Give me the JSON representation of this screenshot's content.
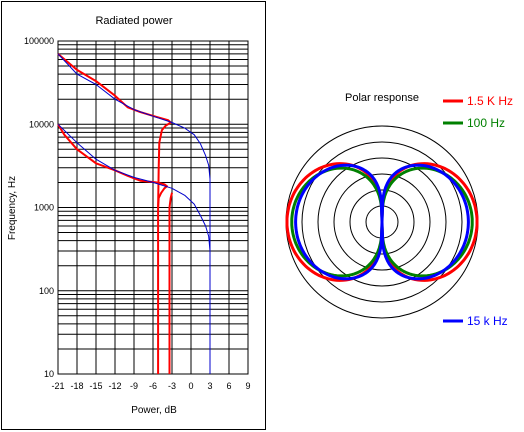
{
  "chart_data": [
    {
      "type": "line",
      "title": "Radiated power",
      "xlabel": "Power, dB",
      "ylabel": "Frequency, Hz",
      "xlim": [
        -21,
        9
      ],
      "ylim": [
        10,
        100000
      ],
      "y_scale": "log",
      "grid": true,
      "x_ticks": [
        "-21",
        "-18",
        "-15",
        "-12",
        "-9",
        "-6",
        "-3",
        "0",
        "3",
        "6",
        "9"
      ],
      "y_ticks": [
        "10",
        "100",
        "1000",
        "10000",
        "100000"
      ],
      "series": [
        {
          "color": "#ff0000",
          "points": [
            [
              -5.2,
              10
            ],
            [
              -5.2,
              1000
            ],
            [
              -5.1,
              1300
            ],
            [
              -4.7,
              1500
            ],
            [
              -4.2,
              1700
            ],
            [
              -3.8,
              1800
            ],
            [
              -4.2,
              1900
            ],
            [
              -5.5,
              2000
            ],
            [
              -8,
              2100
            ],
            [
              -10,
              2400
            ],
            [
              -12,
              2800
            ],
            [
              -15,
              3400
            ],
            [
              -18,
              5000
            ],
            [
              -20,
              7500
            ],
            [
              -21,
              10000
            ]
          ]
        },
        {
          "color": "#ff0000",
          "points": [
            [
              -3.4,
              10
            ],
            [
              -3.4,
              1000
            ],
            [
              -3.2,
              1300
            ],
            [
              -3.0,
              1500
            ]
          ]
        },
        {
          "color": "#ff0000",
          "points": [
            [
              -5.2,
              1000
            ],
            [
              -5.1,
              3000
            ],
            [
              -5.0,
              6000
            ],
            [
              -4.6,
              8500
            ],
            [
              -4.0,
              9600
            ],
            [
              -3.2,
              10500
            ],
            [
              -3.6,
              11200
            ],
            [
              -5.5,
              12300
            ],
            [
              -8,
              14000
            ],
            [
              -10,
              16000
            ],
            [
              -12,
              22000
            ],
            [
              -15,
              33000
            ],
            [
              -18,
              45000
            ],
            [
              -21,
              70000
            ]
          ]
        },
        {
          "color": "#0000cc",
          "points": [
            [
              -21,
              10000
            ],
            [
              -18,
              6000
            ],
            [
              -15,
              3800
            ],
            [
              -12,
              2800
            ],
            [
              -9,
              2300
            ],
            [
              -6,
              2000
            ],
            [
              -3,
              1700
            ],
            [
              -1,
              1400
            ],
            [
              0.5,
              1100
            ],
            [
              1.5,
              800
            ],
            [
              2.3,
              600
            ],
            [
              2.8,
              450
            ],
            [
              3,
              300
            ]
          ]
        },
        {
          "color": "#0000cc",
          "points": [
            [
              -21,
              70000
            ],
            [
              -18,
              40000
            ],
            [
              -15,
              30000
            ],
            [
              -12,
              20000
            ],
            [
              -9,
              15000
            ],
            [
              -6,
              12500
            ],
            [
              -3,
              10500
            ],
            [
              -1,
              9000
            ],
            [
              0.5,
              7500
            ],
            [
              1.5,
              5800
            ],
            [
              2.3,
              4200
            ],
            [
              2.8,
              3200
            ],
            [
              3,
              2200
            ],
            [
              3,
              10
            ]
          ]
        }
      ]
    },
    {
      "type": "polar",
      "title": "Polar response",
      "legend_position": "right",
      "rings": 6,
      "series": [
        {
          "name": "1.5 K Hz",
          "color": "#ff0000"
        },
        {
          "name": "100 Hz",
          "color": "#008000"
        },
        {
          "name": "15 k Hz",
          "color": "#0000ff"
        }
      ]
    }
  ]
}
